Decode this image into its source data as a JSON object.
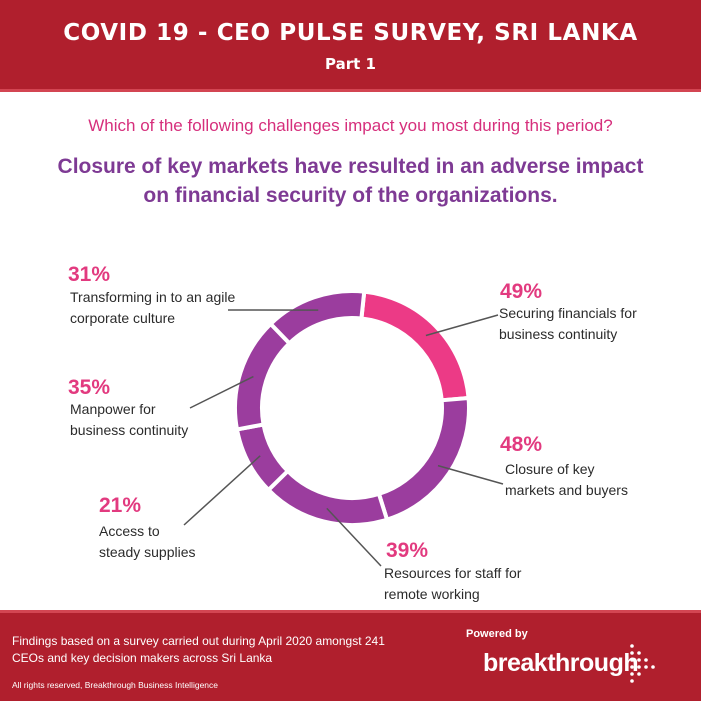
{
  "header": {
    "title": "COVID 19 - CEO PULSE SURVEY, SRI LANKA",
    "subtitle": "Part 1"
  },
  "question": "Which of the following challenges impact you most during this period?",
  "headline_line1": "Closure of key markets have resulted in an adverse impact",
  "headline_line2": "on financial security of the organizations.",
  "chart_data": {
    "type": "pie",
    "categories": [
      "Securing financials for business continuity",
      "Closure of key markets and buyers",
      "Resources for staff for remote working",
      "Access to steady supplies",
      "Manpower for business continuity",
      "Transforming in to an agile corporate culture"
    ],
    "values": [
      49,
      48,
      39,
      21,
      35,
      31
    ],
    "labels": [
      "49%",
      "48%",
      "39%",
      "21%",
      "35%",
      "31%"
    ],
    "label_lines": [
      [
        "Securing financials for",
        "business continuity"
      ],
      [
        "Closure of key",
        "markets and buyers"
      ],
      [
        "Resources for staff for",
        "remote working"
      ],
      [
        "Access to",
        "steady supplies"
      ],
      [
        "Manpower for",
        "business continuity"
      ],
      [
        "Transforming in to an agile",
        "corporate culture"
      ]
    ],
    "colors": [
      "#ec3a86",
      "#9b3d9e",
      "#9b3d9e",
      "#9b3d9e",
      "#9b3d9e",
      "#9b3d9e"
    ]
  },
  "footer": {
    "note_line1": "Findings based on a survey carried out during April 2020 amongst 241",
    "note_line2": "CEOs and key decision makers across Sri Lanka",
    "rights": "All rights reserved, Breakthrough Business Intelligence",
    "powered_by": "Powered by",
    "brand": "breakthrough"
  },
  "colors": {
    "header_bg": "#b01f2d",
    "accent_pink": "#ec3a86",
    "accent_purple": "#9b3d9e",
    "question_text": "#d62f7c",
    "headline_text": "#7e3a94"
  }
}
